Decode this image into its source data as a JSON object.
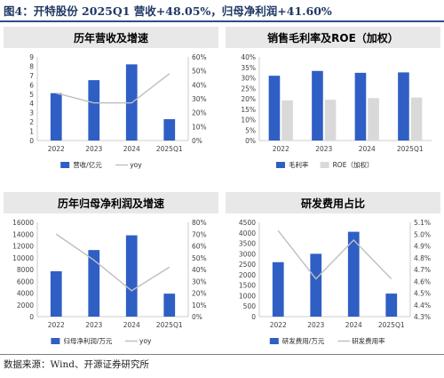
{
  "figure_title": "图4：开特股份 2025Q1 营收+48.05%，归母净利润+41.60%",
  "source_note": "数据来源：Wind、开源证券研究所",
  "colors": {
    "bar_blue": "#2f5fc4",
    "bar_gray": "#d9d9d9",
    "line_gray": "#bfbfbf",
    "header_bg": "#ffffff",
    "header_band": "#e8e8e8",
    "axis_text": "#404040"
  },
  "chart_data": [
    {
      "type": "bar+line",
      "title": "历年营收及增速",
      "categories": [
        "2022",
        "2023",
        "2024",
        "2025Q1"
      ],
      "series": [
        {
          "name": "营收/亿元",
          "kind": "bar",
          "axis": "left",
          "values": [
            5.1,
            6.5,
            8.2,
            2.3
          ]
        },
        {
          "name": "yoy",
          "kind": "line",
          "axis": "right",
          "values": [
            34,
            27,
            27,
            48
          ]
        }
      ],
      "ylim_left": [
        0,
        9
      ],
      "yticks_left": [
        "0",
        "1",
        "2",
        "3",
        "4",
        "5",
        "6",
        "7",
        "8",
        "9"
      ],
      "ylim_right": [
        0,
        60
      ],
      "yticks_right": [
        "0%",
        "10%",
        "20%",
        "30%",
        "40%",
        "50%",
        "60%"
      ],
      "legend": [
        "营收/亿元",
        "yoy"
      ]
    },
    {
      "type": "bar",
      "title": "销售毛利率及ROE（加权）",
      "categories": [
        "2022",
        "2023",
        "2024",
        "2025Q1"
      ],
      "series": [
        {
          "name": "毛利率",
          "kind": "bar",
          "axis": "left",
          "values": [
            31,
            33.3,
            32.4,
            32.6
          ]
        },
        {
          "name": "ROE（加权）",
          "kind": "bar",
          "axis": "left",
          "values": [
            19.2,
            19.5,
            20.3,
            20.6
          ]
        }
      ],
      "ylim_left": [
        0,
        40
      ],
      "yticks_left": [
        "0%",
        "5%",
        "10%",
        "15%",
        "20%",
        "25%",
        "30%",
        "35%",
        "40%"
      ],
      "legend": [
        "毛利率",
        "ROE（加权）"
      ]
    },
    {
      "type": "bar+line",
      "title": "历年归母净利润及增速",
      "categories": [
        "2022",
        "2023",
        "2024",
        "2025Q1"
      ],
      "series": [
        {
          "name": "归母净利润/万元",
          "kind": "bar",
          "axis": "left",
          "values": [
            7700,
            11300,
            13800,
            3900
          ]
        },
        {
          "name": "yoy",
          "kind": "line",
          "axis": "right",
          "values": [
            70,
            48,
            22,
            42
          ]
        }
      ],
      "ylim_left": [
        0,
        16000
      ],
      "yticks_left": [
        "0",
        "2000",
        "4000",
        "6000",
        "8000",
        "10000",
        "12000",
        "14000",
        "16000"
      ],
      "ylim_right": [
        0,
        80
      ],
      "yticks_right": [
        "0%",
        "10%",
        "20%",
        "30%",
        "40%",
        "50%",
        "60%",
        "70%",
        "80%"
      ],
      "legend": [
        "归母净利润/万元",
        "yoy"
      ]
    },
    {
      "type": "bar+line",
      "title": "研发费用占比",
      "categories": [
        "2022",
        "2023",
        "2024",
        "2025Q1"
      ],
      "series": [
        {
          "name": "研发费用/万元",
          "kind": "bar",
          "axis": "left",
          "values": [
            2600,
            3000,
            4050,
            1100
          ]
        },
        {
          "name": "研发费用率",
          "kind": "line",
          "axis": "right",
          "values": [
            5.03,
            4.62,
            4.95,
            4.62
          ]
        }
      ],
      "ylim_left": [
        0,
        4500
      ],
      "yticks_left": [
        "0",
        "500",
        "1000",
        "1500",
        "2000",
        "2500",
        "3000",
        "3500",
        "4000",
        "4500"
      ],
      "ylim_right": [
        4.3,
        5.1
      ],
      "yticks_right": [
        "4.3%",
        "4.4%",
        "4.5%",
        "4.6%",
        "4.7%",
        "4.8%",
        "4.9%",
        "5.0%",
        "5.1%"
      ],
      "legend": [
        "研发费用/万元",
        "研发费用率"
      ]
    }
  ]
}
